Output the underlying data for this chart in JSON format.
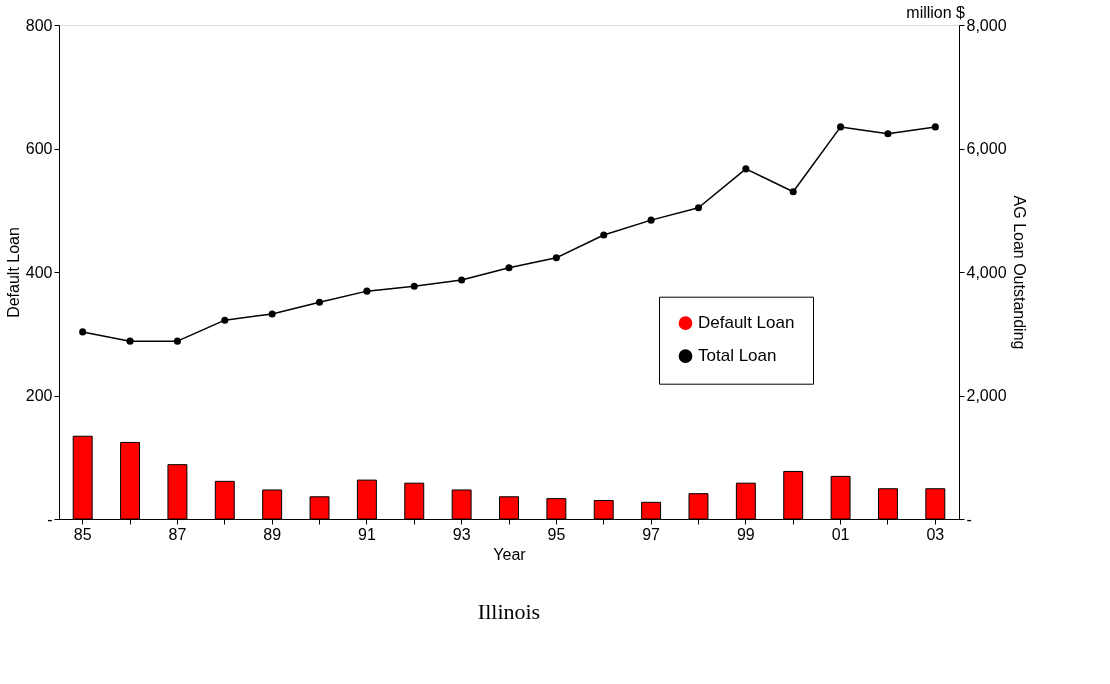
{
  "chart_data": {
    "type": "bar",
    "title": "Illinois",
    "xlabel": "Year",
    "ylabel": "Default Loan",
    "y2label": "AG Loan Outstanding",
    "categories": [
      "85",
      null,
      "87",
      null,
      "89",
      null,
      "91",
      null,
      "93",
      null,
      "95",
      null,
      "97",
      null,
      "99",
      null,
      "01",
      null,
      "03"
    ],
    "series": [
      {
        "name": "Default Loan",
        "color": "#ff0000",
        "values": [
          134,
          124,
          88,
          61,
          47,
          36,
          63,
          58,
          47,
          36,
          33,
          30,
          27,
          41,
          58,
          77,
          69,
          49,
          49
        ]
      },
      {
        "name": "Total Loan",
        "type": "line",
        "axis": "y2",
        "color": "#000000",
        "marker": "circle",
        "values": [
          3030,
          2880,
          2880,
          3220,
          3320,
          3510,
          3690,
          3770,
          3870,
          4070,
          4230,
          4600,
          4840,
          5040,
          5670,
          5300,
          6350,
          6240,
          6350
        ]
      }
    ],
    "ylim": [
      0,
      800
    ],
    "yticks": [
      {
        "value": 0,
        "label": "-"
      },
      200,
      400,
      600,
      800
    ],
    "y2lim": [
      0,
      8000
    ],
    "y2ticks": [
      {
        "value": 0,
        "label": "-"
      },
      {
        "value": 2000,
        "label": "2,000"
      },
      {
        "value": 4000,
        "label": "4,000"
      },
      {
        "value": 6000,
        "label": "6,000"
      },
      {
        "value": 8000,
        "label": "8,000"
      }
    ],
    "annotations": [
      "million $"
    ],
    "legend": "right",
    "grid": false
  }
}
